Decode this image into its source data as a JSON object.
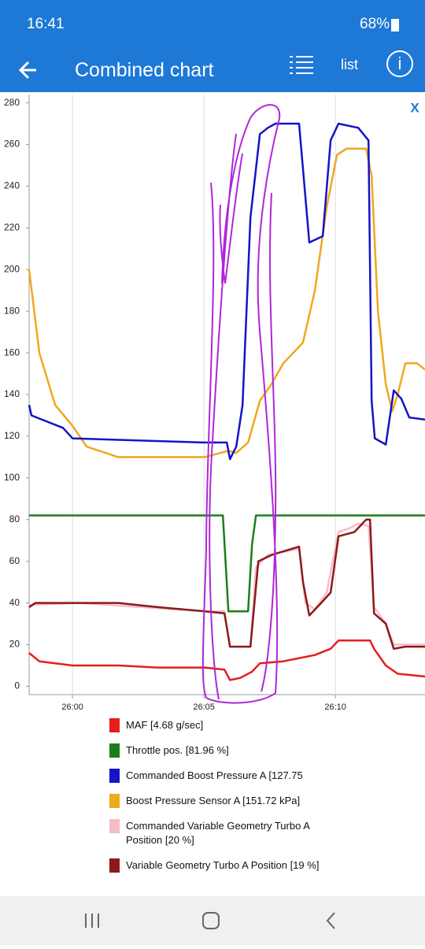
{
  "status_bar": {
    "time": "16:41",
    "battery": "68%"
  },
  "app_bar": {
    "title": "Combined chart",
    "list": "list",
    "info": "i"
  },
  "chart_close": "X",
  "chart_data": {
    "type": "line",
    "xlim": [
      1558.35,
      1573.41
    ],
    "xticks": [
      {
        "value": 1560,
        "label": "26:00"
      },
      {
        "value": 1565,
        "label": "26:05"
      },
      {
        "value": 1570,
        "label": "26:10"
      }
    ],
    "ylim": [
      -4,
      284
    ],
    "yticks": [
      0,
      20,
      40,
      60,
      80,
      100,
      120,
      140,
      160,
      180,
      200,
      220,
      240,
      260,
      280
    ],
    "grid": "x",
    "series": [
      {
        "name": "Boost Pressure Sensor A [151.72 kPa]",
        "color": "#f0a81e",
        "x": [
          1558.35,
          1558.74,
          1559.34,
          1560,
          1560.54,
          1561.74,
          1563.23,
          1565.03,
          1565.93,
          1566.23,
          1566.68,
          1567.13,
          1567.57,
          1568.02,
          1568.77,
          1569.22,
          1569.67,
          1570.06,
          1570.42,
          1571.17,
          1571.38,
          1571.62,
          1571.92,
          1572.16,
          1572.37,
          1572.66,
          1573.11,
          1573.41
        ],
        "values": [
          200,
          160,
          135,
          125,
          115,
          110,
          110,
          110,
          113,
          112,
          117,
          137,
          145,
          155,
          165,
          190,
          230,
          255,
          258,
          258,
          245,
          180,
          145,
          132,
          140,
          155,
          155,
          152
        ]
      },
      {
        "name": "Commanded Boost Pressure A [127.75",
        "color": "#1414c8",
        "x": [
          1558.35,
          1558.44,
          1559.64,
          1560,
          1565.03,
          1565.87,
          1565.99,
          1566.23,
          1566.47,
          1566.77,
          1567.13,
          1567.43,
          1567.72,
          1568.62,
          1569.01,
          1569.52,
          1569.82,
          1570.12,
          1570.87,
          1571.26,
          1571.38,
          1571.5,
          1571.92,
          1572.22,
          1572.51,
          1572.81,
          1573.41
        ],
        "values": [
          135,
          130,
          124,
          119,
          117,
          117,
          109,
          115,
          135,
          225,
          265,
          268,
          270,
          270,
          213,
          216,
          262,
          270,
          268,
          262,
          137,
          119,
          116,
          142,
          138,
          129,
          128
        ]
      },
      {
        "name": "Throttle pos. [81.96 %]",
        "color": "#1a7f1a",
        "x": [
          1558.35,
          1565.72,
          1565.93,
          1566.68,
          1566.83,
          1566.98,
          1573.41
        ],
        "values": [
          82,
          82,
          36,
          36,
          68,
          82,
          82
        ]
      },
      {
        "name": "Commanded Variable Geometry Turbo A Position  [20 %]",
        "color": "#f5bcc8",
        "x": [
          1558.35,
          1560.24,
          1565.03,
          1565.78,
          1565.99,
          1566.77,
          1566.98,
          1567.43,
          1568.62,
          1568.86,
          1569.22,
          1569.67,
          1570.12,
          1570.57,
          1570.87,
          1571.26,
          1571.47,
          1571.92,
          1572.22,
          1573.41
        ],
        "values": [
          39,
          40,
          36,
          36,
          19,
          19,
          57,
          63,
          66,
          40,
          37,
          45,
          74,
          76,
          78,
          77,
          38,
          30,
          20,
          20
        ]
      },
      {
        "name": "Variable Geometry Turbo A Position  [19 %]",
        "color": "#8b1a1a",
        "x": [
          1558.35,
          1558.59,
          1560.24,
          1561.74,
          1563.23,
          1565.03,
          1565.78,
          1565.99,
          1566.77,
          1567.07,
          1567.57,
          1568.62,
          1568.77,
          1569.01,
          1569.46,
          1569.82,
          1570.12,
          1570.72,
          1571.17,
          1571.32,
          1571.47,
          1571.92,
          1572.22,
          1572.66,
          1573.41
        ],
        "values": [
          38,
          40,
          40,
          40,
          38,
          36,
          35,
          19,
          19,
          60,
          63,
          67,
          50,
          34,
          40,
          45,
          72,
          74,
          80,
          80,
          35,
          30,
          18,
          19,
          19
        ]
      },
      {
        "name": "MAF [4.68 g/sec]",
        "color": "#e41e1e",
        "x": [
          1558.35,
          1558.74,
          1560,
          1561.74,
          1563.23,
          1565.03,
          1565.78,
          1565.99,
          1566.38,
          1566.83,
          1567.13,
          1568.02,
          1569.22,
          1569.82,
          1570.12,
          1571.32,
          1571.47,
          1571.92,
          1572.37,
          1573.41
        ],
        "values": [
          16,
          12,
          10,
          10,
          9,
          9,
          8,
          3,
          4,
          7,
          11,
          12,
          15,
          18,
          22,
          22,
          18,
          10,
          6,
          4.7
        ]
      }
    ],
    "legend_order": [
      5,
      2,
      1,
      0,
      3,
      4
    ]
  }
}
